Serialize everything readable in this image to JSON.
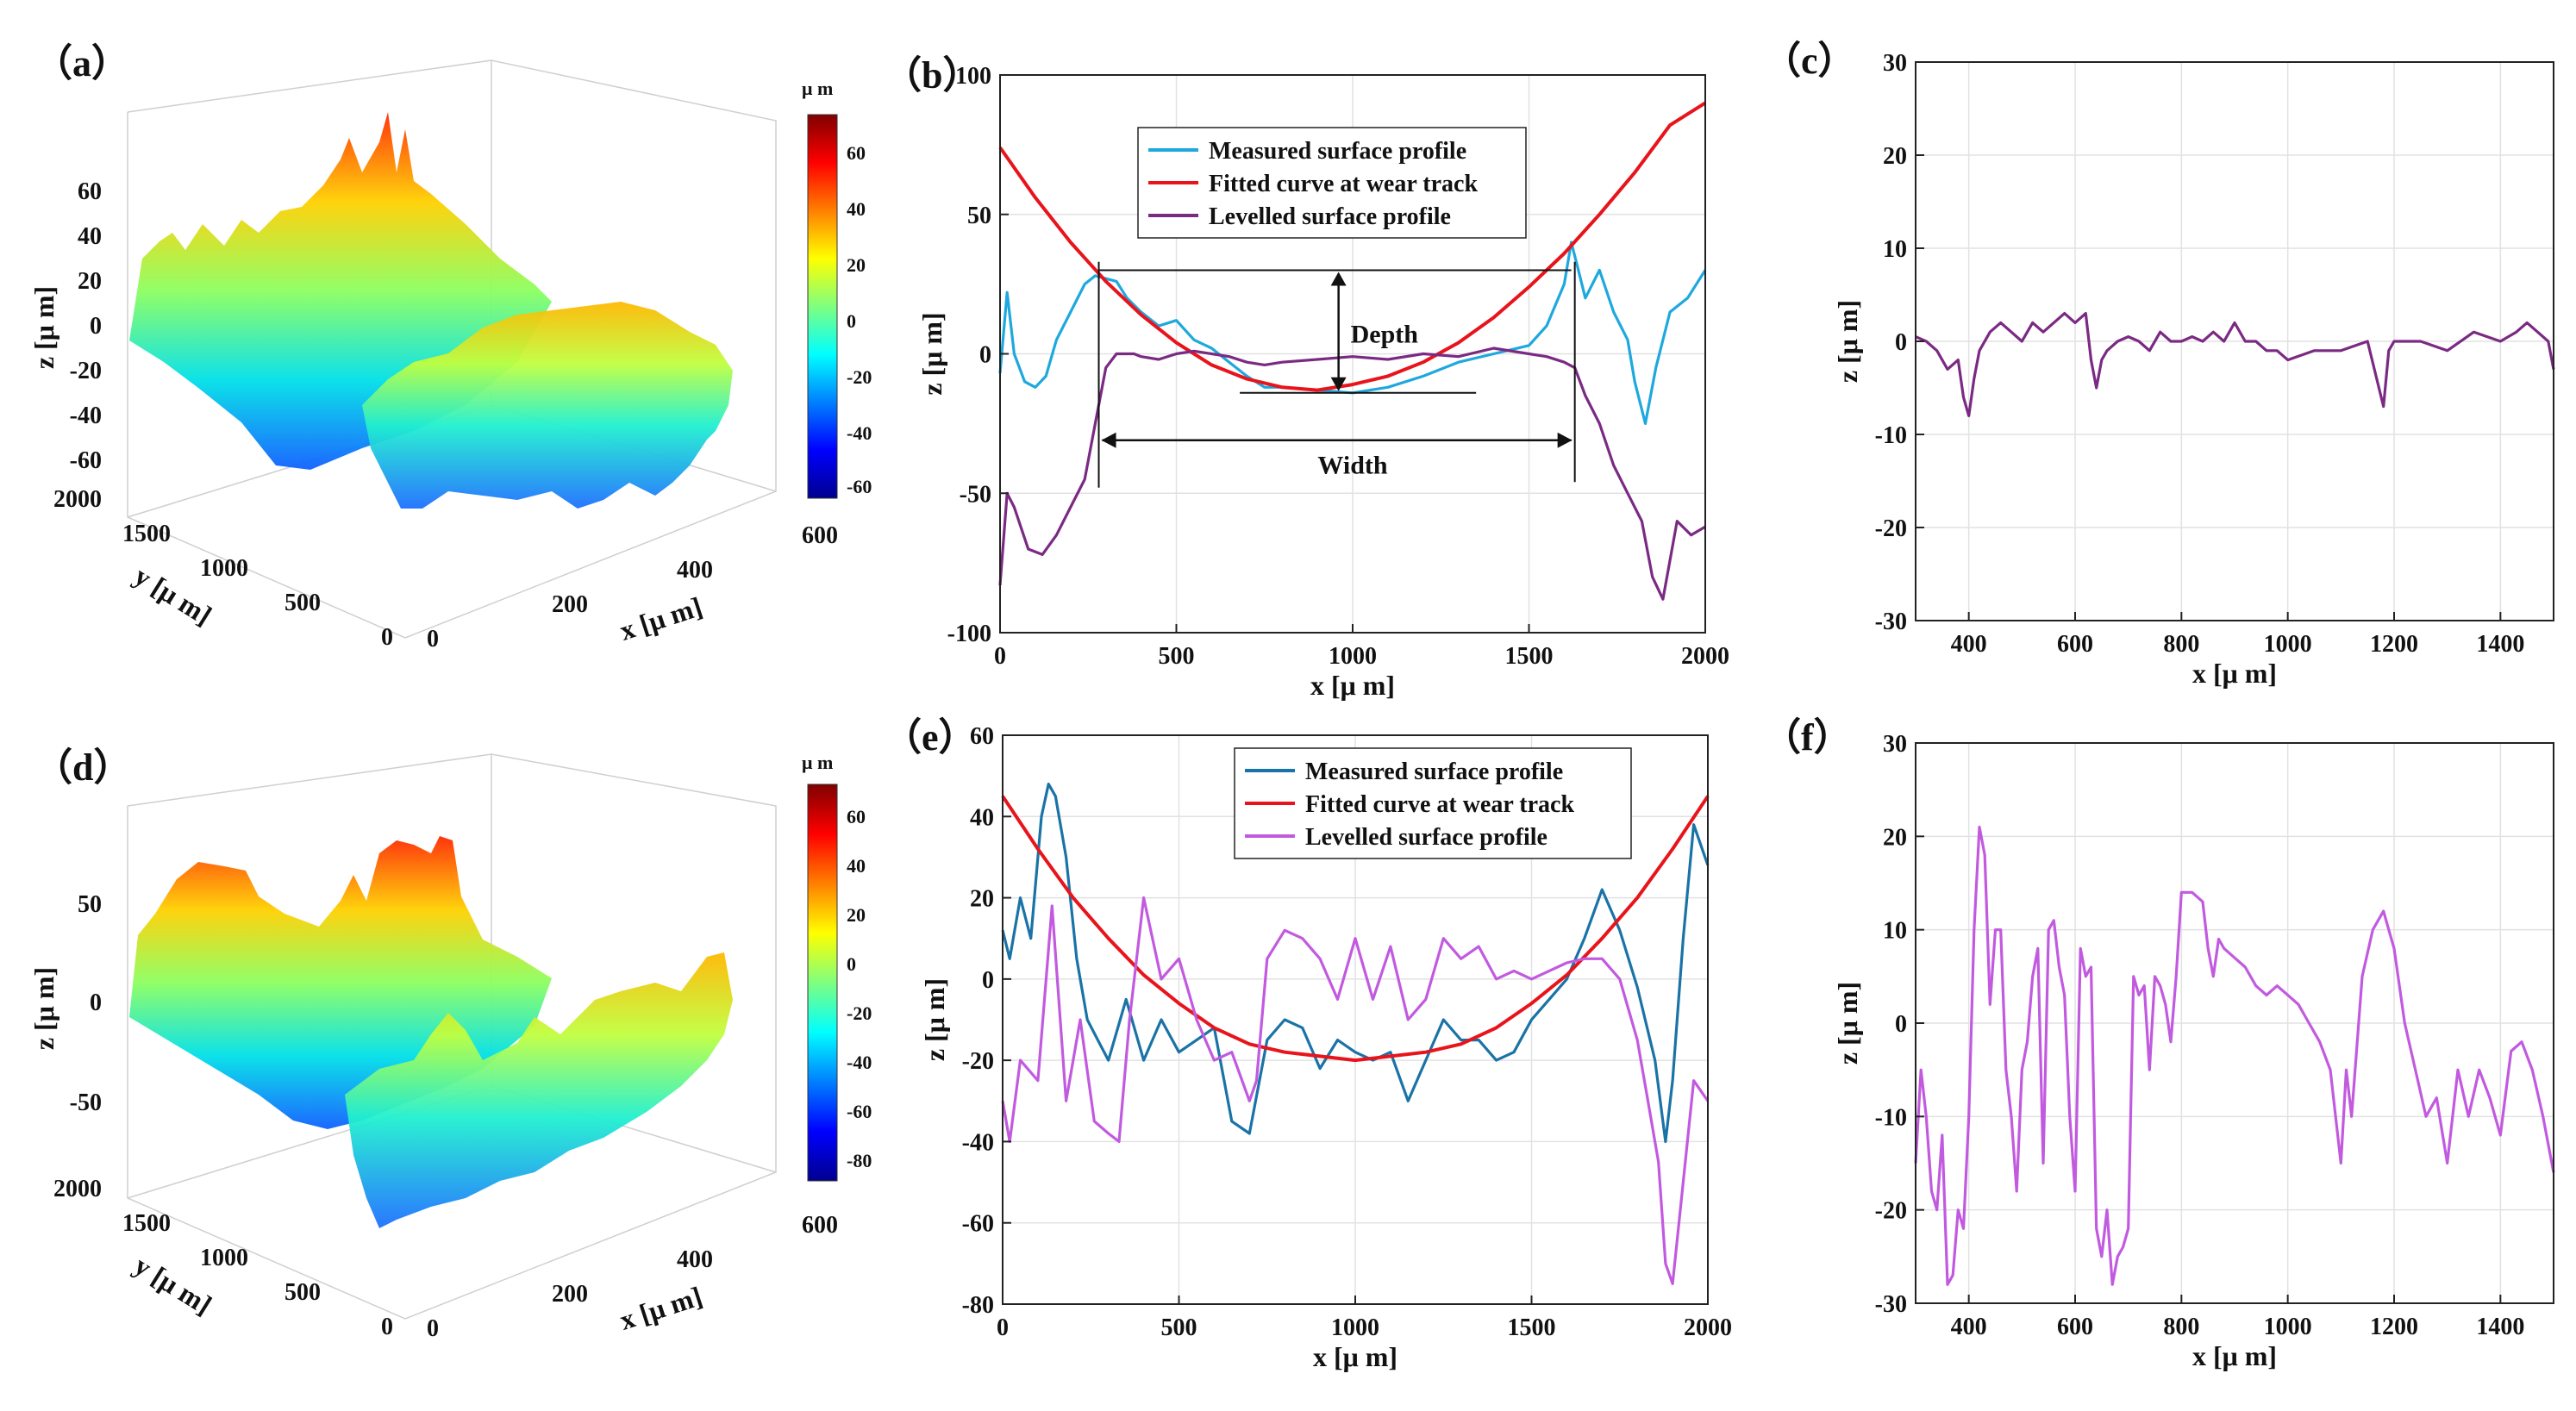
{
  "panels": {
    "a": "（a）",
    "b": "（b）",
    "c": "（c）",
    "d": "（d）",
    "e": "（e）",
    "f": "（f）"
  },
  "colors": {
    "measured_b": "#1ea8de",
    "measured_e": "#1a73a6",
    "fitted": "#e8141c",
    "levelled_b": "#7b2a83",
    "levelled_e": "#c25ae0"
  },
  "chart_data": [
    {
      "id": "a",
      "type": "surface3d",
      "zlabel": "z [μ m]",
      "ylabel": "y [μ m]",
      "xlabel": "x [μ m]",
      "z_ticks": [
        "60",
        "40",
        "20",
        "0",
        "-20",
        "-40",
        "-60"
      ],
      "y_ticks": [
        "2000",
        "1500",
        "1000",
        "500",
        "0"
      ],
      "x_ticks": [
        "0",
        "200",
        "400",
        "600"
      ],
      "colorbar_unit": "μ m",
      "colorbar_ticks": [
        "60",
        "40",
        "20",
        "0",
        "-20",
        "-40",
        "-60"
      ],
      "colormap": "jet"
    },
    {
      "id": "b",
      "type": "line",
      "xlabel": "x [μ m]",
      "ylabel": "z [μ m]",
      "xlim": [
        0,
        2000
      ],
      "ylim": [
        -100,
        100
      ],
      "x_ticks": [
        0,
        500,
        1000,
        1500,
        2000
      ],
      "y_ticks": [
        100,
        50,
        0,
        -50,
        -100
      ],
      "grid": true,
      "legend": "top-center",
      "annotations": {
        "depth": "Depth",
        "width": "Width"
      },
      "series": [
        {
          "name": "Measured surface profile",
          "kind": "measured",
          "x": [
            0,
            20,
            40,
            70,
            100,
            130,
            160,
            200,
            240,
            270,
            300,
            330,
            360,
            400,
            450,
            500,
            550,
            600,
            650,
            700,
            750,
            800,
            900,
            1000,
            1100,
            1200,
            1300,
            1400,
            1500,
            1550,
            1600,
            1620,
            1640,
            1660,
            1700,
            1740,
            1780,
            1800,
            1830,
            1860,
            1900,
            1950,
            2000
          ],
          "y": [
            -7,
            22,
            0,
            -10,
            -12,
            -8,
            5,
            15,
            25,
            28,
            27,
            26,
            20,
            15,
            10,
            12,
            5,
            2,
            -3,
            -8,
            -12,
            -12,
            -13,
            -14,
            -12,
            -8,
            -3,
            0,
            3,
            10,
            25,
            40,
            30,
            20,
            30,
            15,
            5,
            -10,
            -25,
            -5,
            15,
            20,
            30
          ]
        },
        {
          "name": "Fitted curve at wear track",
          "kind": "fitted",
          "x": [
            0,
            100,
            200,
            300,
            400,
            500,
            600,
            700,
            800,
            900,
            1000,
            1100,
            1200,
            1300,
            1400,
            1500,
            1600,
            1700,
            1800,
            1900,
            2000
          ],
          "y": [
            74,
            56,
            40,
            26,
            14,
            4,
            -4,
            -9,
            -12,
            -13,
            -11,
            -8,
            -3,
            4,
            13,
            24,
            36,
            50,
            65,
            82,
            90
          ]
        },
        {
          "name": "Levelled surface profile",
          "kind": "levelled",
          "x": [
            0,
            20,
            40,
            80,
            120,
            160,
            200,
            240,
            270,
            300,
            330,
            380,
            400,
            450,
            500,
            550,
            600,
            650,
            700,
            750,
            800,
            900,
            1000,
            1100,
            1200,
            1300,
            1400,
            1500,
            1550,
            1600,
            1630,
            1660,
            1700,
            1740,
            1780,
            1820,
            1850,
            1880,
            1920,
            1960,
            2000
          ],
          "y": [
            -83,
            -50,
            -55,
            -70,
            -72,
            -65,
            -55,
            -45,
            -25,
            -5,
            0,
            0,
            -1,
            -2,
            0,
            1,
            0,
            -1,
            -3,
            -4,
            -3,
            -2,
            -1,
            -2,
            0,
            -1,
            2,
            0,
            -1,
            -3,
            -5,
            -15,
            -25,
            -40,
            -50,
            -60,
            -80,
            -88,
            -60,
            -65,
            -62
          ]
        }
      ]
    },
    {
      "id": "c",
      "type": "line",
      "xlabel": "x [μ m]",
      "ylabel": "z [μ m]",
      "xlim": [
        300,
        1500
      ],
      "ylim": [
        -30,
        30
      ],
      "x_ticks": [
        400,
        600,
        800,
        1000,
        1200,
        1400
      ],
      "y_ticks": [
        30,
        20,
        10,
        0,
        -10,
        -20,
        -30
      ],
      "grid": true,
      "series": [
        {
          "kind": "levelled",
          "x": [
            300,
            320,
            340,
            360,
            380,
            390,
            400,
            410,
            420,
            440,
            460,
            480,
            500,
            520,
            540,
            560,
            580,
            600,
            620,
            630,
            640,
            650,
            660,
            680,
            700,
            720,
            740,
            760,
            780,
            800,
            820,
            840,
            860,
            880,
            900,
            920,
            940,
            960,
            980,
            1000,
            1050,
            1100,
            1150,
            1180,
            1190,
            1200,
            1250,
            1300,
            1350,
            1400,
            1430,
            1450,
            1470,
            1490,
            1500
          ],
          "y": [
            0.5,
            0,
            -1,
            -3,
            -2,
            -6,
            -8,
            -4,
            -1,
            1,
            2,
            1,
            0,
            2,
            1,
            2,
            3,
            2,
            3,
            -2,
            -5,
            -2,
            -1,
            0,
            0.5,
            0,
            -1,
            1,
            0,
            0,
            0.5,
            0,
            1,
            0,
            2,
            0,
            0,
            -1,
            -1,
            -2,
            -1,
            -1,
            0,
            -7,
            -1,
            0,
            0,
            -1,
            1,
            0,
            1,
            2,
            1,
            0,
            -3
          ]
        }
      ]
    },
    {
      "id": "d",
      "type": "surface3d",
      "zlabel": "z [μ m]",
      "ylabel": "y [μ m]",
      "xlabel": "x [μ m]",
      "z_ticks": [
        "50",
        "0",
        "-50"
      ],
      "y_ticks": [
        "2000",
        "1500",
        "1000",
        "500",
        "0"
      ],
      "x_ticks": [
        "0",
        "200",
        "400",
        "600"
      ],
      "colorbar_unit": "μ m",
      "colorbar_ticks": [
        "60",
        "40",
        "20",
        "0",
        "-20",
        "-40",
        "-60",
        "-80"
      ],
      "colormap": "jet"
    },
    {
      "id": "e",
      "type": "line",
      "xlabel": "x [μ m]",
      "ylabel": "z [μ m]",
      "xlim": [
        0,
        2000
      ],
      "ylim": [
        -80,
        60
      ],
      "x_ticks": [
        0,
        500,
        1000,
        1500,
        2000
      ],
      "y_ticks": [
        60,
        40,
        20,
        0,
        -20,
        -40,
        -60,
        -80
      ],
      "grid": true,
      "legend": "top-right",
      "series": [
        {
          "name": "Measured surface profile",
          "kind": "measured",
          "x": [
            0,
            20,
            50,
            80,
            110,
            130,
            150,
            180,
            210,
            240,
            270,
            300,
            350,
            400,
            450,
            500,
            550,
            600,
            650,
            700,
            750,
            800,
            850,
            900,
            950,
            1000,
            1050,
            1100,
            1150,
            1200,
            1250,
            1300,
            1350,
            1400,
            1450,
            1500,
            1550,
            1600,
            1650,
            1700,
            1750,
            1800,
            1850,
            1880,
            1900,
            1930,
            1960,
            2000
          ],
          "y": [
            12,
            5,
            20,
            10,
            40,
            48,
            45,
            30,
            5,
            -10,
            -15,
            -20,
            -5,
            -20,
            -10,
            -18,
            -15,
            -12,
            -35,
            -38,
            -15,
            -10,
            -12,
            -22,
            -15,
            -18,
            -20,
            -18,
            -30,
            -20,
            -10,
            -15,
            -15,
            -20,
            -18,
            -10,
            -5,
            0,
            10,
            22,
            12,
            -2,
            -20,
            -40,
            -25,
            10,
            38,
            28
          ]
        },
        {
          "name": "Fitted curve at wear track",
          "kind": "fitted",
          "x": [
            0,
            100,
            200,
            300,
            400,
            500,
            600,
            700,
            800,
            900,
            1000,
            1100,
            1200,
            1300,
            1400,
            1500,
            1600,
            1700,
            1800,
            1900,
            2000
          ],
          "y": [
            45,
            32,
            20,
            10,
            1,
            -6,
            -12,
            -16,
            -18,
            -19,
            -20,
            -19,
            -18,
            -16,
            -12,
            -6,
            1,
            10,
            20,
            32,
            45
          ]
        },
        {
          "name": "Levelled surface profile",
          "kind": "levelled",
          "x": [
            0,
            20,
            50,
            100,
            140,
            180,
            220,
            260,
            300,
            330,
            360,
            400,
            450,
            500,
            550,
            600,
            650,
            700,
            720,
            750,
            800,
            850,
            900,
            950,
            1000,
            1050,
            1100,
            1150,
            1200,
            1250,
            1300,
            1350,
            1400,
            1450,
            1500,
            1550,
            1600,
            1650,
            1700,
            1750,
            1800,
            1830,
            1860,
            1880,
            1900,
            1930,
            1960,
            2000
          ],
          "y": [
            -30,
            -40,
            -20,
            -25,
            18,
            -30,
            -10,
            -35,
            -38,
            -40,
            -10,
            20,
            0,
            5,
            -10,
            -20,
            -18,
            -30,
            -25,
            5,
            12,
            10,
            5,
            -5,
            10,
            -5,
            8,
            -10,
            -5,
            10,
            5,
            8,
            0,
            2,
            0,
            2,
            4,
            5,
            5,
            0,
            -15,
            -30,
            -45,
            -70,
            -75,
            -50,
            -25,
            -30
          ]
        }
      ]
    },
    {
      "id": "f",
      "type": "line",
      "xlabel": "x [μ m]",
      "ylabel": "z [μ m]",
      "xlim": [
        300,
        1500
      ],
      "ylim": [
        -30,
        30
      ],
      "x_ticks": [
        400,
        600,
        800,
        1000,
        1200,
        1400
      ],
      "y_ticks": [
        30,
        20,
        10,
        0,
        -10,
        -20,
        -30
      ],
      "grid": true,
      "series": [
        {
          "kind": "levelled",
          "x": [
            300,
            310,
            320,
            330,
            340,
            350,
            360,
            370,
            380,
            390,
            400,
            410,
            420,
            430,
            440,
            450,
            460,
            470,
            480,
            490,
            500,
            510,
            520,
            530,
            540,
            550,
            560,
            570,
            580,
            590,
            600,
            610,
            620,
            630,
            640,
            650,
            660,
            670,
            680,
            690,
            700,
            710,
            720,
            730,
            740,
            750,
            760,
            770,
            780,
            790,
            800,
            820,
            840,
            850,
            860,
            870,
            880,
            900,
            920,
            940,
            960,
            980,
            1000,
            1020,
            1040,
            1060,
            1080,
            1100,
            1110,
            1120,
            1140,
            1160,
            1180,
            1190,
            1200,
            1220,
            1240,
            1260,
            1280,
            1300,
            1320,
            1340,
            1360,
            1380,
            1400,
            1420,
            1440,
            1460,
            1480,
            1500
          ],
          "y": [
            -15,
            -5,
            -10,
            -18,
            -20,
            -12,
            -28,
            -27,
            -20,
            -22,
            -10,
            10,
            21,
            18,
            2,
            10,
            10,
            -5,
            -10,
            -18,
            -5,
            -2,
            5,
            8,
            -15,
            10,
            11,
            6,
            3,
            -10,
            -18,
            8,
            5,
            6,
            -22,
            -25,
            -20,
            -28,
            -25,
            -24,
            -22,
            5,
            3,
            4,
            -5,
            5,
            4,
            2,
            -2,
            5,
            14,
            14,
            13,
            8,
            5,
            9,
            8,
            7,
            6,
            4,
            3,
            4,
            3,
            2,
            0,
            -2,
            -5,
            -15,
            -5,
            -10,
            5,
            10,
            12,
            10,
            8,
            0,
            -5,
            -10,
            -8,
            -15,
            -5,
            -10,
            -5,
            -8,
            -12,
            -3,
            -2,
            -5,
            -10,
            -16
          ]
        }
      ]
    }
  ]
}
